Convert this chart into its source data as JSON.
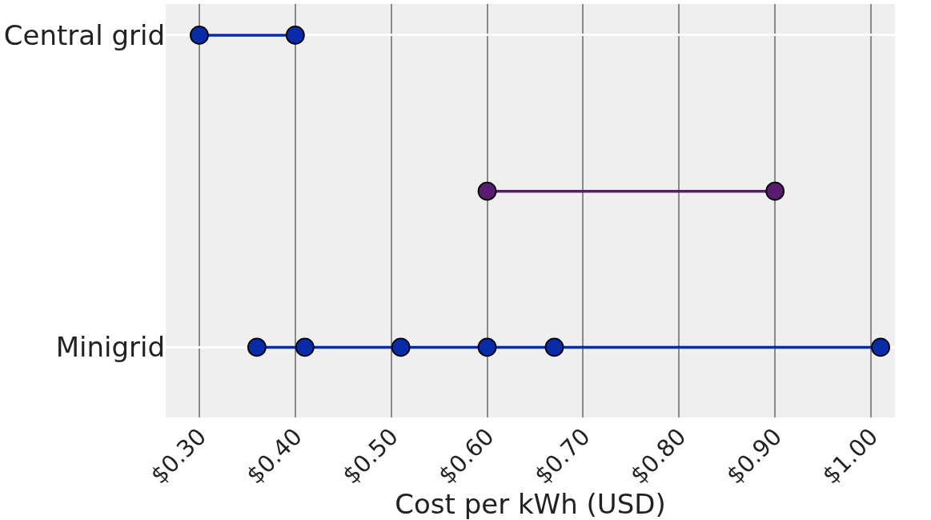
{
  "chart_data": {
    "type": "line",
    "orientation": "horizontal",
    "xlabel": "Cost per kWh (USD)",
    "categories": [
      "Central grid",
      null,
      "Minigrid"
    ],
    "series": [
      {
        "color": "#0a2ba8",
        "x": [
          "Central grid",
          "Central grid"
        ],
        "values": [
          0.3,
          0.4
        ]
      },
      {
        "color": "#5b1a72",
        "x": [
          null,
          null
        ],
        "values": [
          0.6,
          0.9
        ]
      },
      {
        "color": "#0a2ba8",
        "x": [
          "Minigrid",
          "Minigrid",
          "Minigrid",
          "Minigrid",
          "Minigrid",
          "Minigrid"
        ],
        "values": [
          0.36,
          0.41,
          0.51,
          0.6,
          0.67,
          1.01
        ]
      }
    ],
    "xlim": [
      0.265,
      1.025
    ],
    "xticks": [
      {
        "value": 0.3,
        "label": "$0.30"
      },
      {
        "value": 0.4,
        "label": "$0.40"
      },
      {
        "value": 0.5,
        "label": "$0.50"
      },
      {
        "value": 0.6,
        "label": "$0.60"
      },
      {
        "value": 0.7,
        "label": "$0.70"
      },
      {
        "value": 0.8,
        "label": "$0.80"
      },
      {
        "value": 0.9,
        "label": "$0.90"
      },
      {
        "value": 1.0,
        "label": "$1.00"
      }
    ],
    "grid": true,
    "marker": "circle",
    "line_style": "solid"
  }
}
